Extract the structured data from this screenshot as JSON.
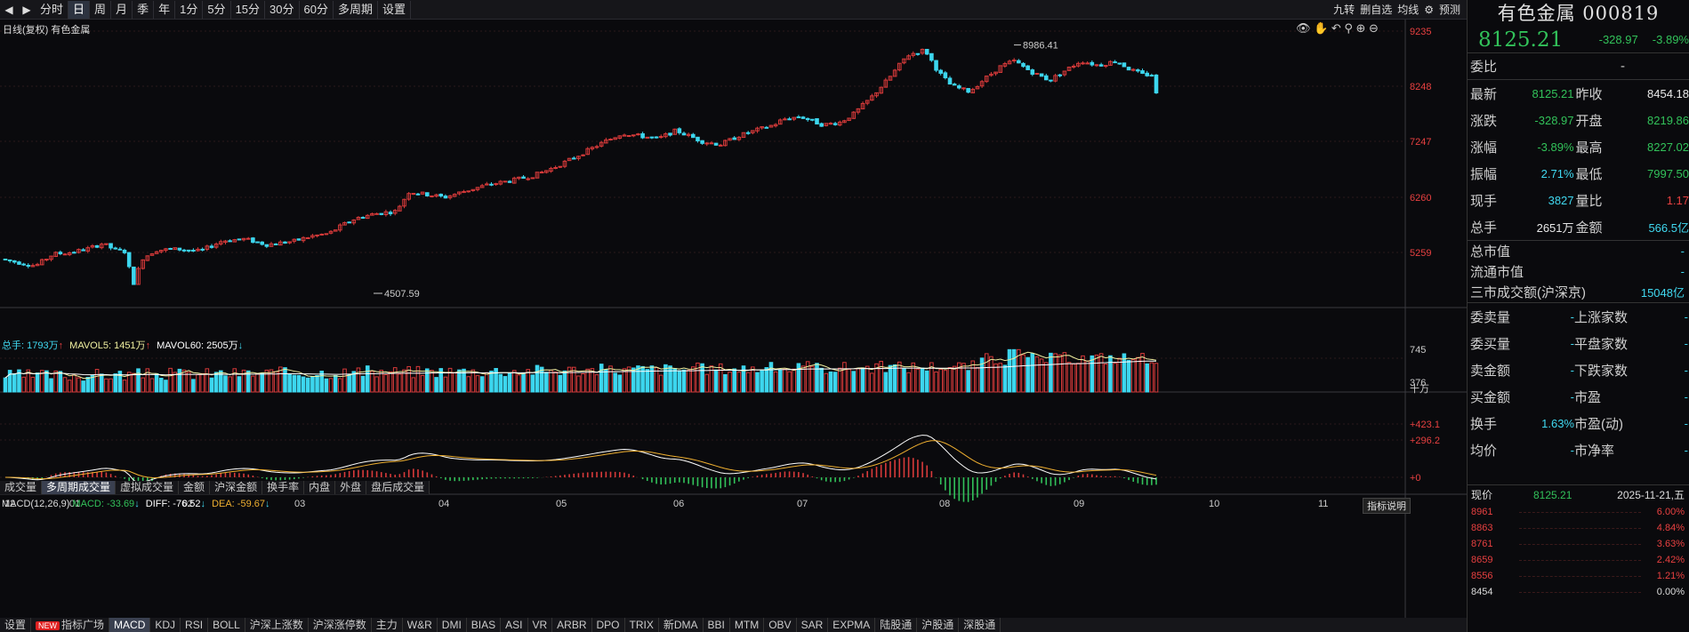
{
  "toolbar": {
    "periods": [
      "分时",
      "日",
      "周",
      "月",
      "季",
      "年",
      "1分",
      "5分",
      "15分",
      "30分",
      "60分",
      "多周期",
      "设置"
    ],
    "active_period": "日",
    "right_items": [
      "九转",
      "删自选",
      "均线",
      "⚙",
      "预测"
    ]
  },
  "chart_title": "日线(复权)  有色金属",
  "price_axis": [
    "9235",
    "8248",
    "7247",
    "6260",
    "5259"
  ],
  "annotations": {
    "high": "8986.41",
    "low": "4507.59"
  },
  "month_labels": [
    "12",
    "01",
    "02",
    "03",
    "04",
    "05",
    "06",
    "07",
    "08",
    "09",
    "10",
    "11"
  ],
  "volume_info": {
    "total_label": "总手: 1793万",
    "mavol5": "MAVOL5: 1451万",
    "mavol60": "MAVOL60: 2505万"
  },
  "volume_axis": [
    "745",
    "376",
    "十万"
  ],
  "volume_tabs": [
    "成交量",
    "多周期成交量",
    "虚拟成交量",
    "金额",
    "沪深金额",
    "换手率",
    "内盘",
    "外盘",
    "盘后成交量"
  ],
  "volume_active": "多周期成交量",
  "macd_info": {
    "title": "MACD(12,26,9)",
    "macd": "MACD: -33.69",
    "diff": "DIFF: -76.52",
    "dea": "DEA: -59.67",
    "explain": "指标说明"
  },
  "macd_axis": [
    "+423.1",
    "+296.2",
    "+0"
  ],
  "bottom_tabs": [
    "设置",
    "指标广场",
    "MACD",
    "KDJ",
    "RSI",
    "BOLL",
    "沪深上涨数",
    "沪深涨停数",
    "主力",
    "W&R",
    "DMI",
    "BIAS",
    "ASI",
    "VR",
    "ARBR",
    "DPO",
    "TRIX",
    "新DMA",
    "BBI",
    "MTM",
    "OBV",
    "SAR",
    "EXPMA",
    "陆股通",
    "沪股通",
    "深股通"
  ],
  "bottom_active": "MACD",
  "quote": {
    "name": "有色金属 000819",
    "price": "8125.21",
    "change": "-328.97",
    "change_pct": "-3.89%",
    "weibi_label": "委比",
    "weibi_val": "-",
    "rows": [
      {
        "l1": "最新",
        "v1": "8125.21",
        "c1": "green",
        "l2": "昨收",
        "v2": "8454.18",
        "c2": "white"
      },
      {
        "l1": "涨跌",
        "v1": "-328.97",
        "c1": "green",
        "l2": "开盘",
        "v2": "8219.86",
        "c2": "green"
      },
      {
        "l1": "涨幅",
        "v1": "-3.89%",
        "c1": "green",
        "l2": "最高",
        "v2": "8227.02",
        "c2": "green"
      },
      {
        "l1": "振幅",
        "v1": "2.71%",
        "c1": "cyan",
        "l2": "最低",
        "v2": "7997.50",
        "c2": "green"
      },
      {
        "l1": "现手",
        "v1": "3827",
        "c1": "cyan",
        "l2": "量比",
        "v2": "1.17",
        "c2": "red"
      },
      {
        "l1": "总手",
        "v1": "2651万",
        "c1": "white",
        "l2": "金额",
        "v2": "566.5亿",
        "c2": "cyan"
      }
    ],
    "mv_rows": [
      {
        "label": "总市值",
        "val": "-"
      },
      {
        "label": "流通市值",
        "val": "-"
      },
      {
        "label": "三市成交额(沪深京)",
        "val": "15048亿"
      }
    ],
    "pair_rows": [
      {
        "l1": "委卖量",
        "v1": "-",
        "l2": "上涨家数",
        "v2": "-"
      },
      {
        "l1": "委买量",
        "v1": "-",
        "l2": "平盘家数",
        "v2": "-"
      },
      {
        "l1": "卖金额",
        "v1": "-",
        "l2": "下跌家数",
        "v2": "-"
      },
      {
        "l1": "买金额",
        "v1": "-",
        "l2": "市盈",
        "v2": "-"
      },
      {
        "l1": "换手",
        "v1": "1.63%",
        "l2": "市盈(动)",
        "v2": "-"
      },
      {
        "l1": "均价",
        "v1": "-",
        "l2": "市净率",
        "v2": "-"
      }
    ]
  },
  "mini": {
    "label": "现价",
    "price": "8125.21",
    "date": "2025-11-21,五",
    "levels": [
      {
        "p": "8961",
        "pct": "6.00%"
      },
      {
        "p": "8863",
        "pct": "4.84%"
      },
      {
        "p": "8761",
        "pct": "3.63%"
      },
      {
        "p": "8659",
        "pct": "2.42%"
      },
      {
        "p": "8556",
        "pct": "1.21%"
      },
      {
        "p": "8454",
        "pct": "0.00%"
      }
    ]
  },
  "colors": {
    "up": "#d83a3a",
    "down": "#3cd6ee",
    "green": "#32c25a",
    "bg": "#0a0a0d"
  }
}
